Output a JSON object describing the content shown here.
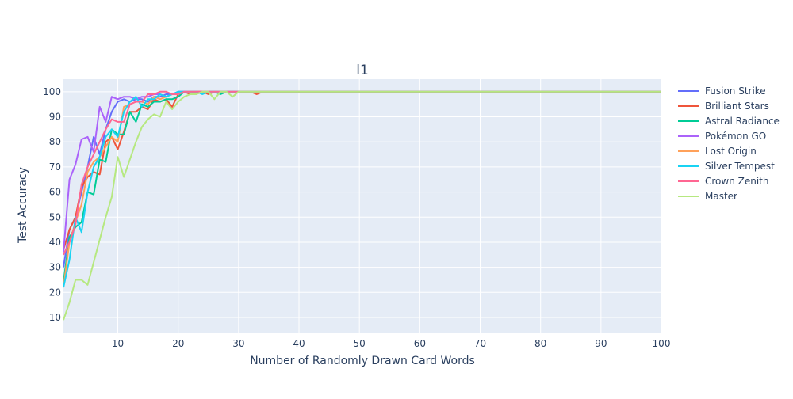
{
  "chart_data": {
    "type": "line",
    "title": "l1",
    "xlabel": "Number of Randomly Drawn Card Words",
    "ylabel": "Test Accuracy",
    "xlim": [
      1,
      100
    ],
    "ylim": [
      4,
      105
    ],
    "x_ticks": [
      10,
      20,
      30,
      40,
      50,
      60,
      70,
      80,
      90,
      100
    ],
    "y_ticks": [
      10,
      20,
      30,
      40,
      50,
      60,
      70,
      80,
      90,
      100
    ],
    "grid": true,
    "legend_position": "right",
    "plot_background": "#e5ecf6",
    "series": [
      {
        "name": "Fusion Strike",
        "color": "#636efa",
        "x": [
          1,
          2,
          3,
          4,
          5,
          6,
          7,
          8,
          9,
          10,
          11,
          12,
          13,
          14,
          15,
          16,
          17,
          18,
          19,
          20,
          21,
          22,
          100
        ],
        "y": [
          30,
          45,
          50,
          60,
          70,
          82,
          75,
          85,
          92,
          96,
          97,
          96,
          97,
          97,
          96,
          98,
          98,
          99,
          99,
          100,
          100,
          100,
          100
        ]
      },
      {
        "name": "Brilliant Stars",
        "color": "#ef553b",
        "x": [
          1,
          2,
          3,
          4,
          5,
          6,
          7,
          8,
          9,
          10,
          11,
          12,
          13,
          14,
          15,
          16,
          17,
          18,
          19,
          20,
          21,
          22,
          23,
          24,
          25,
          26,
          27,
          28,
          29,
          30,
          31,
          32,
          33,
          34,
          100
        ],
        "y": [
          37,
          45,
          50,
          62,
          66,
          68,
          67,
          80,
          82,
          77,
          84,
          92,
          92,
          94,
          93,
          97,
          96,
          97,
          94,
          99,
          100,
          99,
          100,
          100,
          99,
          100,
          100,
          100,
          100,
          100,
          100,
          100,
          99,
          100,
          100
        ]
      },
      {
        "name": "Astral Radiance",
        "color": "#00cc96",
        "x": [
          1,
          2,
          3,
          4,
          5,
          6,
          7,
          8,
          9,
          10,
          11,
          12,
          13,
          14,
          15,
          16,
          17,
          18,
          19,
          20,
          21,
          22,
          23,
          24,
          25,
          26,
          27,
          28,
          29,
          30,
          100
        ],
        "y": [
          24,
          42,
          46,
          48,
          60,
          59,
          73,
          72,
          85,
          83,
          83,
          92,
          88,
          95,
          94,
          96,
          96,
          97,
          97,
          98,
          100,
          100,
          100,
          100,
          100,
          100,
          99,
          100,
          100,
          100,
          100
        ]
      },
      {
        "name": "Pokémon GO",
        "color": "#ab63fa",
        "x": [
          1,
          2,
          3,
          4,
          5,
          6,
          7,
          8,
          9,
          10,
          11,
          12,
          13,
          14,
          15,
          16,
          17,
          18,
          19,
          20,
          21,
          22,
          100
        ],
        "y": [
          36,
          65,
          71,
          81,
          82,
          76,
          94,
          88,
          98,
          97,
          98,
          98,
          97,
          98,
          98,
          99,
          99,
          98,
          99,
          100,
          100,
          100,
          100
        ]
      },
      {
        "name": "Lost Origin",
        "color": "#ffa15a",
        "x": [
          1,
          2,
          3,
          4,
          5,
          6,
          7,
          8,
          9,
          10,
          11,
          12,
          13,
          14,
          15,
          16,
          17,
          18,
          19,
          20,
          21,
          22,
          23,
          24,
          25,
          26,
          27,
          100
        ],
        "y": [
          22,
          40,
          48,
          55,
          68,
          72,
          74,
          78,
          82,
          80,
          94,
          95,
          96,
          96,
          95,
          98,
          97,
          98,
          99,
          99,
          100,
          100,
          100,
          100,
          100,
          100,
          100,
          100
        ]
      },
      {
        "name": "Silver Tempest",
        "color": "#19d3f3",
        "x": [
          1,
          2,
          3,
          4,
          5,
          6,
          7,
          8,
          9,
          10,
          11,
          12,
          13,
          14,
          15,
          16,
          17,
          18,
          19,
          20,
          21,
          22,
          23,
          24,
          25,
          26,
          27,
          28,
          100
        ],
        "y": [
          22,
          33,
          50,
          44,
          60,
          70,
          74,
          82,
          85,
          82,
          92,
          96,
          98,
          94,
          97,
          97,
          99,
          98,
          99,
          100,
          100,
          100,
          100,
          99,
          100,
          100,
          100,
          100,
          100
        ]
      },
      {
        "name": "Crown Zenith",
        "color": "#ff6692",
        "x": [
          1,
          2,
          3,
          4,
          5,
          6,
          7,
          8,
          9,
          10,
          11,
          12,
          13,
          14,
          15,
          16,
          17,
          18,
          19,
          20,
          21,
          22,
          23,
          24,
          25,
          26,
          100
        ],
        "y": [
          35,
          40,
          47,
          63,
          70,
          75,
          80,
          85,
          89,
          88,
          88,
          95,
          96,
          96,
          99,
          99,
          100,
          100,
          99,
          99,
          100,
          100,
          100,
          100,
          100,
          100,
          100
        ]
      },
      {
        "name": "Master",
        "color": "#b6e880",
        "x": [
          1,
          2,
          3,
          4,
          5,
          6,
          7,
          8,
          9,
          10,
          11,
          12,
          13,
          14,
          15,
          16,
          17,
          18,
          19,
          20,
          21,
          22,
          23,
          24,
          25,
          26,
          27,
          28,
          29,
          30,
          31,
          32,
          100
        ],
        "y": [
          9,
          16,
          25,
          25,
          23,
          32,
          41,
          50,
          58,
          74,
          66,
          73,
          80,
          86,
          89,
          91,
          90,
          96,
          93,
          96,
          98,
          99,
          99,
          100,
          100,
          97,
          100,
          100,
          98,
          100,
          100,
          100,
          100
        ]
      }
    ]
  }
}
